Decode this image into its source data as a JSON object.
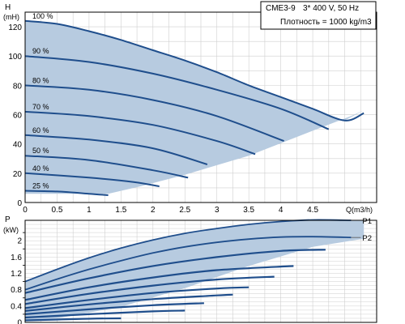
{
  "colors": {
    "curve": "#1f4e8c",
    "band": "#b7cbe0",
    "grid": "#cfcfcf",
    "frame": "#000000"
  },
  "legend_box": {
    "model": "CME3-9",
    "supply": "3* 400 V, 50 Hz",
    "density": "Плотность = 1000 kg/m3"
  },
  "chart_data": [
    {
      "type": "line",
      "xlabel": "Q(m3/h)",
      "ylabel": "H",
      "yunit": "(mH)",
      "xlim": [
        0,
        5.5
      ],
      "ylim": [
        0,
        130
      ],
      "xticks": [
        0,
        0.5,
        1,
        1.5,
        2,
        2.5,
        3,
        3.5,
        4,
        4.5
      ],
      "xtick_labels": [
        "0",
        "0.5",
        "1",
        "1.5",
        "2",
        "2.5",
        "3",
        "3.5",
        "4",
        "4.5"
      ],
      "yticks": [
        0,
        20,
        40,
        60,
        80,
        100,
        120
      ],
      "ytick_labels": [
        "0",
        "20",
        "40",
        "60",
        "80",
        "100",
        "120"
      ],
      "grid": true,
      "envelope": {
        "x": [
          0,
          0.5,
          1,
          1.5,
          2,
          2.5,
          3,
          3.5,
          4,
          4.5,
          5.0,
          5.3,
          5.1,
          4.5,
          3.5,
          2.5,
          1.8,
          1.3,
          0
        ],
        "y": [
          124,
          122,
          117,
          111,
          104,
          97,
          89,
          80,
          72,
          64,
          56,
          63,
          59,
          49,
          32,
          19,
          11,
          6,
          6
        ]
      },
      "series": [
        {
          "name": "100 %",
          "x": [
            0,
            0.5,
            1,
            1.5,
            2,
            2.5,
            3,
            3.5,
            4,
            4.5,
            5.0,
            5.3
          ],
          "y": [
            124,
            122,
            117,
            111,
            104,
            97,
            89,
            80,
            72,
            64,
            56,
            61
          ]
        },
        {
          "name": "90 %",
          "x": [
            0,
            1,
            2,
            3,
            4,
            4.75
          ],
          "y": [
            100,
            96,
            88,
            77,
            64,
            50
          ]
        },
        {
          "name": "80 %",
          "x": [
            0,
            1,
            2,
            3,
            4.05
          ],
          "y": [
            80,
            77,
            70,
            59,
            42
          ]
        },
        {
          "name": "70 %",
          "x": [
            0,
            1,
            2,
            3,
            3.6
          ],
          "y": [
            62,
            59,
            53,
            42,
            33
          ]
        },
        {
          "name": "60 %",
          "x": [
            0,
            1,
            2,
            2.85
          ],
          "y": [
            46,
            43,
            37,
            26
          ]
        },
        {
          "name": "50 %",
          "x": [
            0,
            1,
            2,
            2.55
          ],
          "y": [
            32,
            29,
            22,
            17
          ]
        },
        {
          "name": "40 %",
          "x": [
            0,
            1,
            1.7,
            2.1
          ],
          "y": [
            20,
            17,
            14,
            11
          ]
        },
        {
          "name": "25 %",
          "x": [
            0,
            0.5,
            1,
            1.3
          ],
          "y": [
            8,
            7.5,
            6,
            5
          ]
        }
      ]
    },
    {
      "type": "line",
      "xlabel": "",
      "ylabel": "P",
      "yunit": "(kW)",
      "xlim": [
        0,
        5.5
      ],
      "ylim": [
        0,
        2.5
      ],
      "yticks": [
        0,
        0.4,
        0.8,
        1.2,
        1.6,
        2
      ],
      "ytick_labels": [
        "0",
        "0.4",
        "0.8",
        "1.2",
        "1.6",
        "2"
      ],
      "ytick_minor": [
        0.2,
        0.6,
        1.0,
        1.4,
        1.8,
        2.2
      ],
      "grid": true,
      "envelope": {
        "x": [
          0,
          0.5,
          1,
          1.5,
          2,
          2.5,
          3,
          3.5,
          4,
          4.5,
          5.3,
          5.3,
          4.5,
          3.5,
          2.5,
          1.5,
          0.5,
          0
        ],
        "y": [
          1.0,
          1.3,
          1.58,
          1.82,
          2.02,
          2.18,
          2.3,
          2.4,
          2.47,
          2.51,
          2.5,
          2.05,
          1.85,
          1.38,
          0.84,
          0.38,
          0.1,
          0.05
        ]
      },
      "series": [
        {
          "name": "P1",
          "x": [
            0,
            0.5,
            1,
            1.5,
            2,
            2.5,
            3,
            3.5,
            4,
            4.5,
            5.1
          ],
          "y": [
            1.0,
            1.3,
            1.58,
            1.82,
            2.02,
            2.18,
            2.3,
            2.4,
            2.47,
            2.51,
            2.5
          ]
        },
        {
          "name": "P2",
          "x": [
            0,
            0.5,
            1,
            1.5,
            2,
            2.5,
            3,
            3.5,
            4,
            4.5,
            5.1
          ],
          "y": [
            0.8,
            1.06,
            1.3,
            1.51,
            1.7,
            1.85,
            1.96,
            2.04,
            2.09,
            2.1,
            2.08
          ]
        },
        {
          "name": "",
          "x": [
            0,
            1,
            2,
            3,
            4,
            4.7
          ],
          "y": [
            0.72,
            1.08,
            1.38,
            1.6,
            1.75,
            1.78
          ]
        },
        {
          "name": "",
          "x": [
            0,
            1,
            2,
            3,
            4.2
          ],
          "y": [
            0.55,
            0.86,
            1.1,
            1.28,
            1.38
          ]
        },
        {
          "name": "",
          "x": [
            0,
            1,
            2,
            3,
            3.9
          ],
          "y": [
            0.45,
            0.7,
            0.9,
            1.05,
            1.12
          ]
        },
        {
          "name": "",
          "x": [
            0,
            1,
            2,
            3,
            3.5
          ],
          "y": [
            0.35,
            0.55,
            0.72,
            0.83,
            0.86
          ]
        },
        {
          "name": "",
          "x": [
            0,
            1,
            2,
            3,
            3.25
          ],
          "y": [
            0.28,
            0.44,
            0.57,
            0.66,
            0.68
          ]
        },
        {
          "name": "",
          "x": [
            0,
            1,
            2,
            2.8
          ],
          "y": [
            0.2,
            0.32,
            0.42,
            0.47
          ]
        },
        {
          "name": "",
          "x": [
            0,
            1,
            2,
            2.5
          ],
          "y": [
            0.12,
            0.2,
            0.27,
            0.29
          ]
        },
        {
          "name": "",
          "x": [
            0,
            0.5,
            1,
            1.5
          ],
          "y": [
            0.05,
            0.07,
            0.09,
            0.1
          ]
        }
      ]
    }
  ]
}
